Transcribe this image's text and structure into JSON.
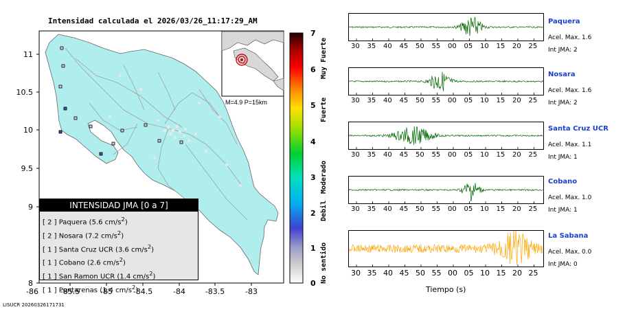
{
  "title": "Intensidad calculada el 2026/03/26_11:17:29_AM",
  "footer": "LISUCR 20260326171731",
  "map": {
    "y_ticks": [
      "11",
      "10.5",
      "10",
      "9.5",
      "9",
      "8"
    ],
    "x_ticks": [
      "-86",
      "-85.5",
      "-85",
      "-84.5",
      "-84",
      "-83.5",
      "-83"
    ],
    "inset_caption": "M=4.9 P=15km",
    "colors": {
      "land": "#b0eeee",
      "sea": "#ffffff",
      "roads": "#a0a0a0"
    }
  },
  "legend": {
    "title": "INTENSIDAD JMA [0 a 7]",
    "items": [
      {
        "level": "[ 2 ]",
        "station": "Paquera (5.6 cm/s",
        "sup": "2",
        "tail": ")"
      },
      {
        "level": "[ 2 ]",
        "station": "Nosara (7.2 cm/s",
        "sup": "2",
        "tail": ")"
      },
      {
        "level": "[ 1 ]",
        "station": "Santa Cruz UCR (3.6 cm/s",
        "sup": "2",
        "tail": ")"
      },
      {
        "level": "[ 1 ]",
        "station": "Cobano (2.6 cm/s",
        "sup": "2",
        "tail": ")"
      },
      {
        "level": "[ 1 ]",
        "station": "San Ramon UCR (1.4 cm/s",
        "sup": "2",
        "tail": ")"
      },
      {
        "level": "[ 1 ]",
        "station": "Puntarenas (1.4 cm/s",
        "sup": "2",
        "tail": ")"
      }
    ]
  },
  "scale": {
    "labels": [
      "7",
      "6",
      "5",
      "4",
      "3",
      "2",
      "1",
      "0"
    ],
    "categories": [
      "Muy Fuerte",
      "Fuerte",
      "Moderado",
      "Debil",
      "No sentido"
    ]
  },
  "seismograms": {
    "time_ticks": [
      "30",
      "35",
      "40",
      "45",
      "50",
      "55",
      "00",
      "05",
      "10",
      "15",
      "20",
      "25"
    ],
    "xlabel": "Tiempo (s)",
    "stations": [
      {
        "name": "Paquera",
        "accel": "Acel. Max. 1.6",
        "jma": "Int JMA: 2",
        "color": "#006400"
      },
      {
        "name": "Nosara",
        "accel": "Acel. Max. 1.6",
        "jma": "Int JMA: 2",
        "color": "#006400"
      },
      {
        "name": "Santa Cruz UCR",
        "accel": "Acel. Max. 1.1",
        "jma": "Int JMA: 1",
        "color": "#006400"
      },
      {
        "name": "Cobano",
        "accel": "Acel. Max. 1.0",
        "jma": "Int JMA: 1",
        "color": "#006400"
      },
      {
        "name": "La Sabana",
        "accel": "Acel. Max. 0.0",
        "jma": "Int JMA: 0",
        "color": "#ffa500"
      }
    ]
  }
}
